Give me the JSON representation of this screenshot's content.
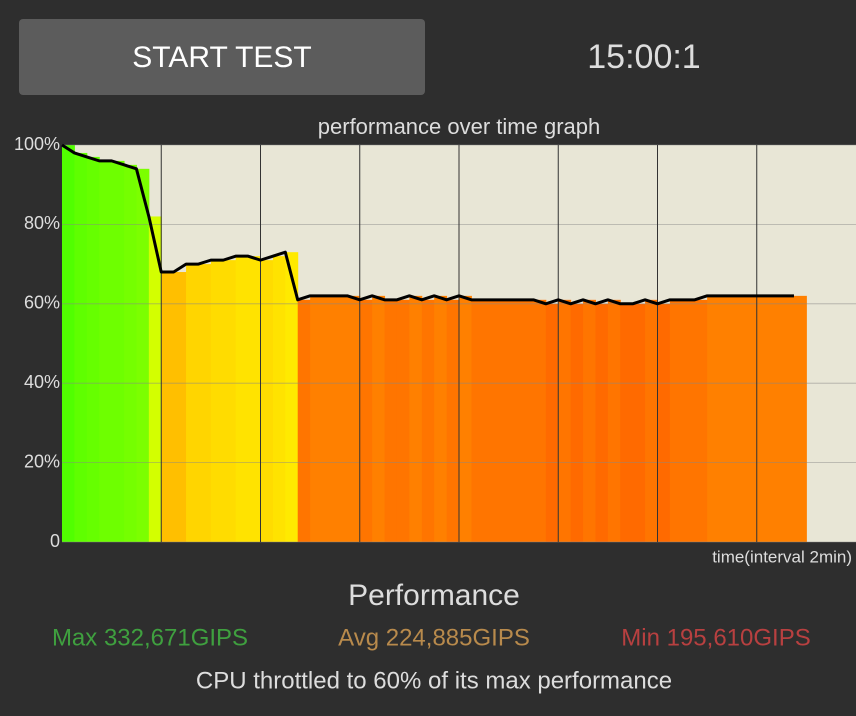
{
  "button": "START TEST",
  "timer": "15:00:1",
  "chart_data": {
    "type": "area",
    "title": "performance over time graph",
    "x_label": "time(interval 2min)",
    "x": [
      0,
      0.25,
      0.5,
      0.75,
      1,
      1.25,
      1.5,
      1.75,
      2,
      2.25,
      2.5,
      2.75,
      3,
      3.25,
      3.5,
      3.75,
      4,
      4.25,
      4.5,
      4.75,
      5,
      5.25,
      5.5,
      5.75,
      6,
      6.25,
      6.5,
      6.75,
      7,
      7.25,
      7.5,
      7.75,
      8,
      8.25,
      8.5,
      8.75,
      9,
      9.25,
      9.5,
      9.75,
      10,
      10.25,
      10.5,
      10.75,
      11,
      11.25,
      11.5,
      11.75,
      12,
      12.25,
      12.5,
      12.75,
      13,
      13.25,
      13.5,
      13.75,
      14,
      14.25,
      14.5,
      14.75
    ],
    "values": [
      100,
      98,
      97,
      96,
      96,
      95,
      94,
      82,
      68,
      68,
      70,
      70,
      71,
      71,
      72,
      72,
      71,
      72,
      73,
      61,
      62,
      62,
      62,
      62,
      61,
      62,
      61,
      61,
      62,
      61,
      62,
      61,
      62,
      61,
      61,
      61,
      61,
      61,
      61,
      60,
      61,
      60,
      61,
      60,
      61,
      60,
      60,
      61,
      60,
      61,
      61,
      61,
      62,
      62,
      62,
      62,
      62,
      62,
      62,
      62
    ],
    "color": "#000000",
    "xlim": [
      0,
      16
    ],
    "xticks": [
      2,
      4,
      6,
      8,
      10,
      12,
      14
    ],
    "ylim": [
      0,
      100
    ],
    "yticks": [
      0,
      {
        "value": 20,
        "label": "20%"
      },
      {
        "value": 40,
        "label": "40%"
      },
      {
        "value": 60,
        "label": "60%"
      },
      {
        "value": 80,
        "label": "80%"
      },
      {
        "value": 100,
        "label": "100%"
      }
    ],
    "grid": true
  },
  "summary": {
    "heading": "Performance",
    "max": "Max 332,671GIPS",
    "avg": "Avg 224,885GIPS",
    "min": "Min 195,610GIPS",
    "note": "CPU throttled to 60% of its max performance"
  }
}
